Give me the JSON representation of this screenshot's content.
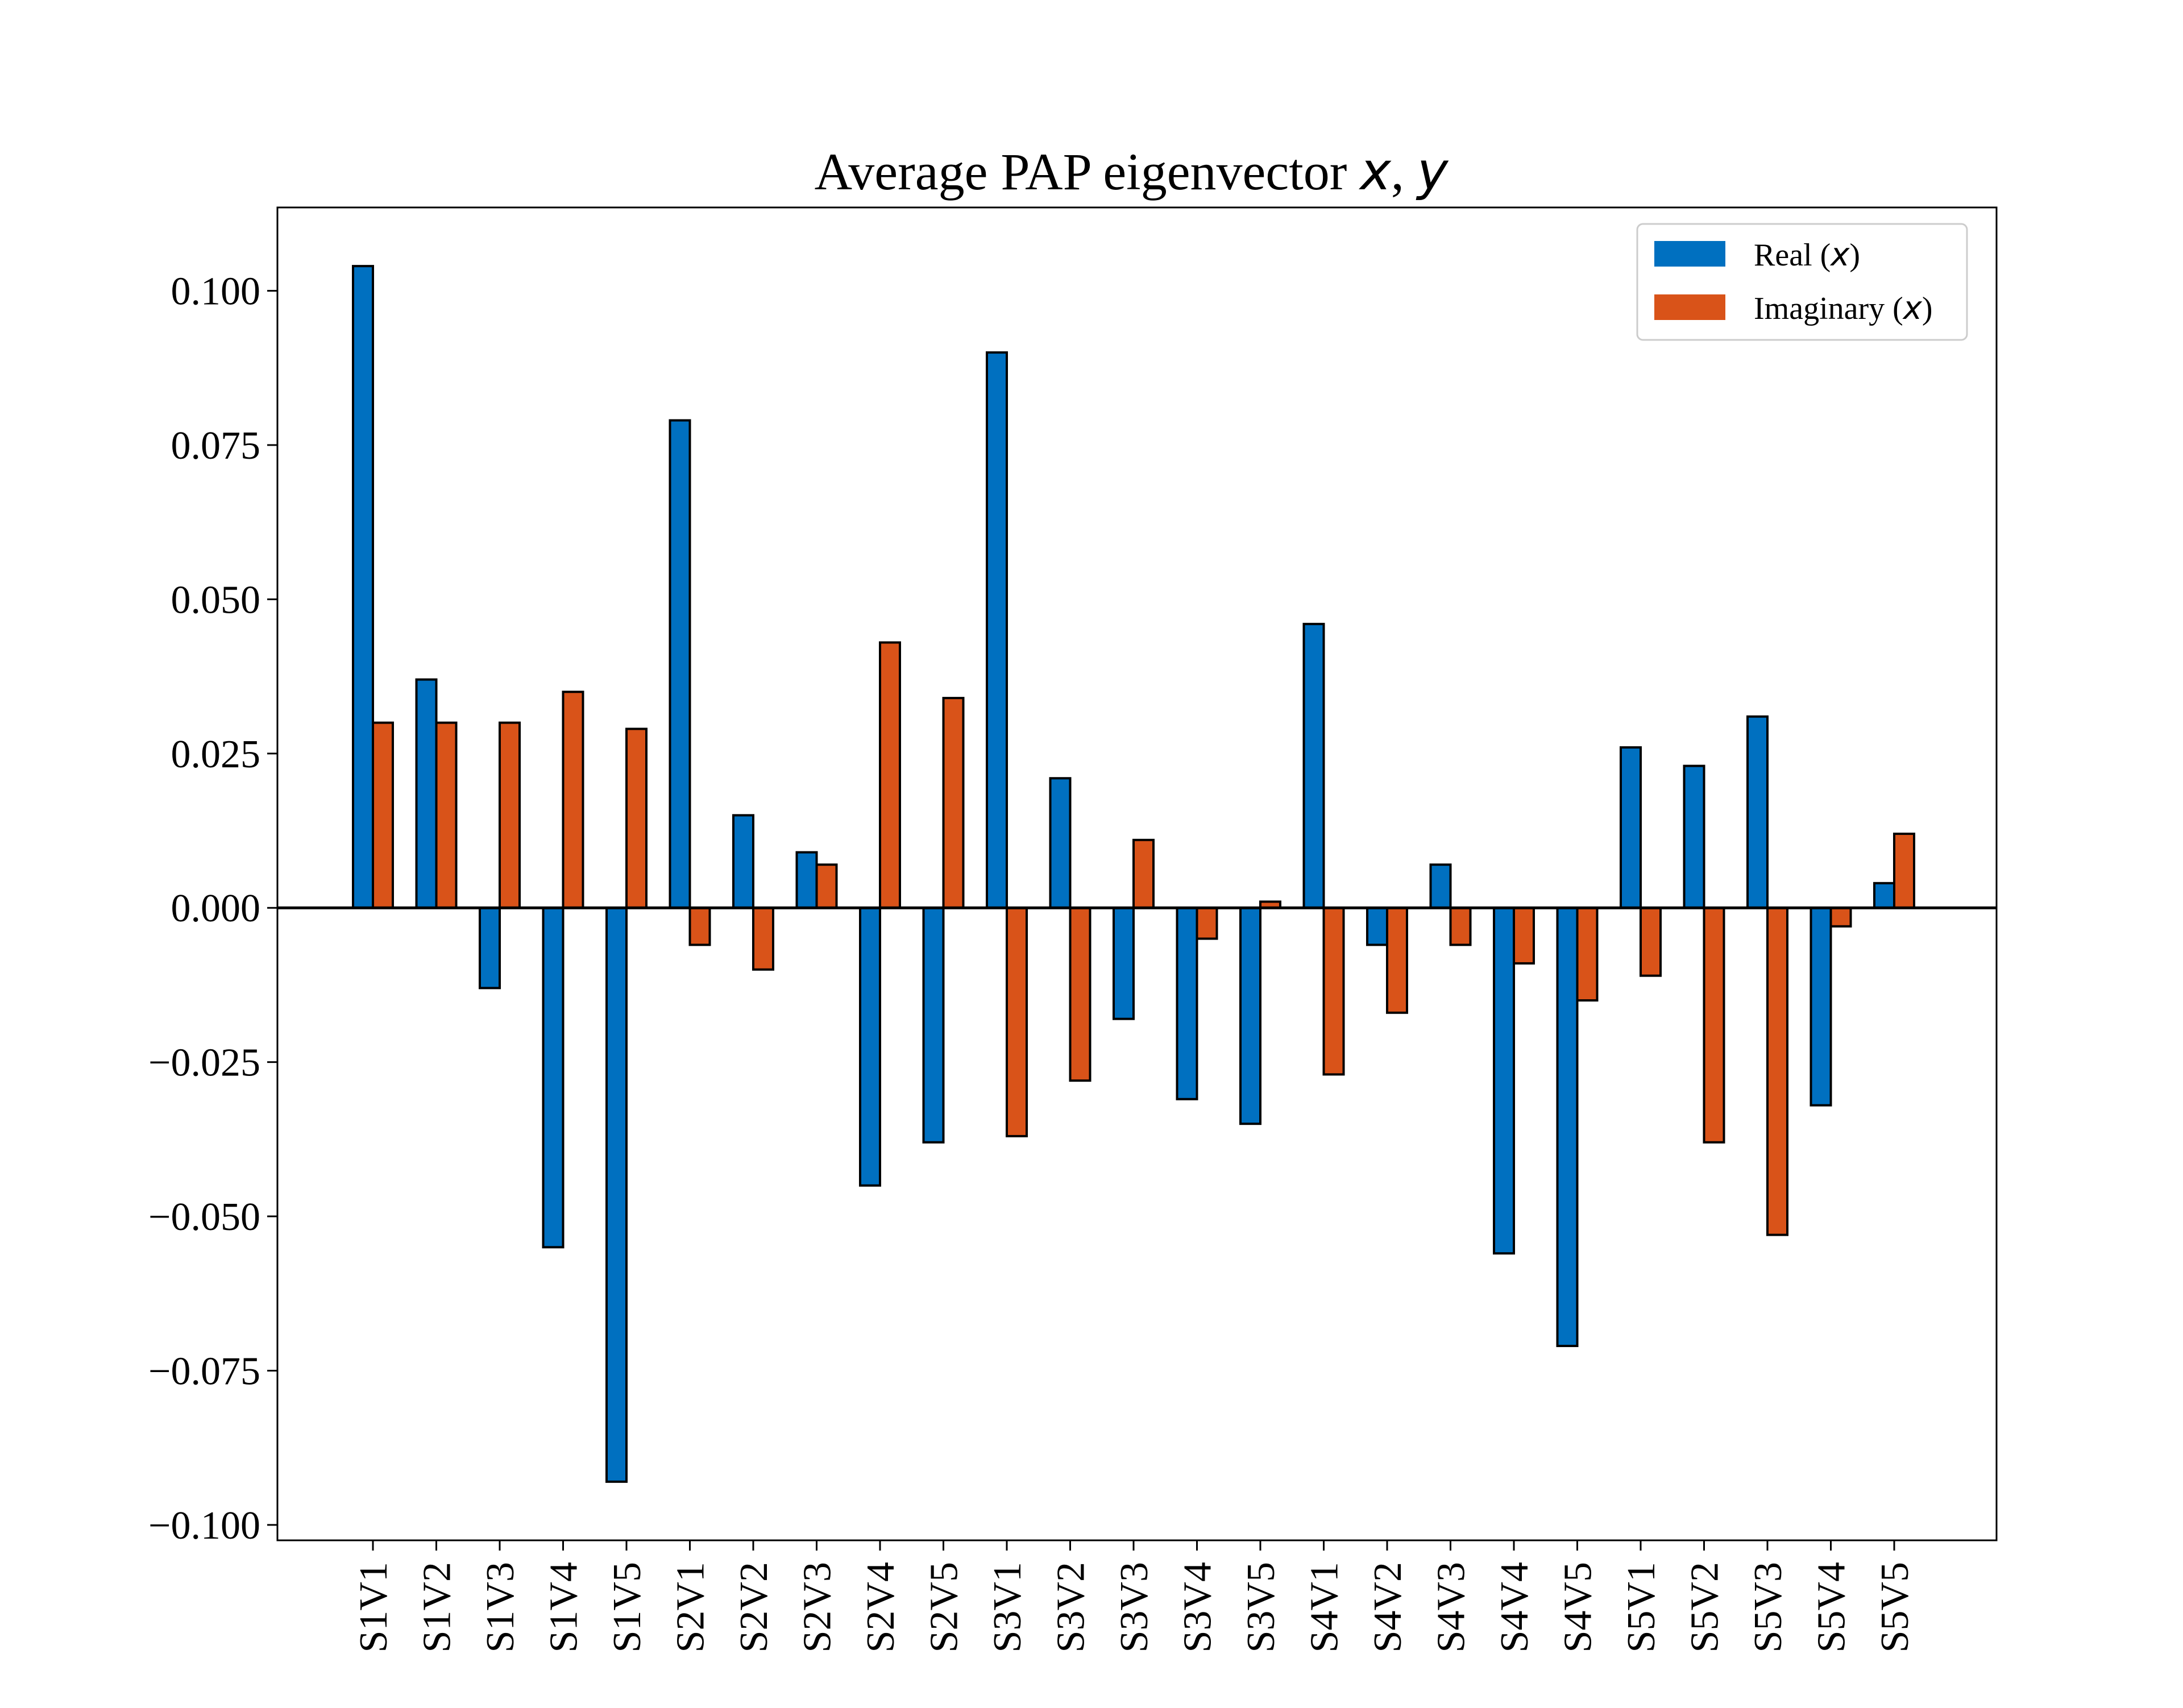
{
  "chart_data": {
    "type": "bar",
    "title": "Average PAP eigenvector x, y",
    "title_parts": {
      "prefix": "Average PAP eigenvector ",
      "var1": "x",
      "sep": ", ",
      "var2": "y"
    },
    "xlabel": "",
    "ylabel": "",
    "categories": [
      "S1V1",
      "S1V2",
      "S1V3",
      "S1V4",
      "S1V5",
      "S2V1",
      "S2V2",
      "S2V3",
      "S2V4",
      "S2V5",
      "S3V1",
      "S3V2",
      "S3V3",
      "S3V4",
      "S3V5",
      "S4V1",
      "S4V2",
      "S4V3",
      "S4V4",
      "S4V5",
      "S5V1",
      "S5V2",
      "S5V3",
      "S5V4",
      "S5V5"
    ],
    "series": [
      {
        "name": "Real (x)",
        "label_parts": {
          "prefix": "Real (",
          "var": "x",
          "suffix": ")"
        },
        "color": "#0070C0",
        "values": [
          0.104,
          0.037,
          -0.013,
          -0.055,
          -0.093,
          0.079,
          0.015,
          0.009,
          -0.045,
          -0.038,
          0.09,
          0.021,
          -0.018,
          -0.031,
          -0.035,
          0.046,
          -0.006,
          0.007,
          -0.056,
          -0.071,
          0.026,
          0.023,
          0.031,
          -0.032,
          0.004
        ]
      },
      {
        "name": "Imaginary (x)",
        "label_parts": {
          "prefix": "Imaginary (",
          "var": "x",
          "suffix": ")"
        },
        "color": "#D95319",
        "values": [
          0.03,
          0.03,
          0.03,
          0.035,
          0.029,
          -0.006,
          -0.01,
          0.007,
          0.043,
          0.034,
          -0.037,
          -0.028,
          0.011,
          -0.005,
          0.001,
          -0.027,
          -0.017,
          -0.006,
          -0.009,
          -0.015,
          -0.011,
          -0.038,
          -0.053,
          -0.003,
          0.012
        ]
      }
    ],
    "ylim": [
      -0.1025,
      0.1135
    ],
    "yticks": [
      0.1,
      0.075,
      0.05,
      0.025,
      0.0,
      -0.025,
      -0.05,
      -0.075,
      -0.1
    ],
    "ytick_labels": [
      "0.100",
      "0.075",
      "0.050",
      "0.025",
      "0.000",
      "−0.025",
      "−0.050",
      "−0.075",
      "−0.100"
    ],
    "grid": false,
    "legend_position": "top-right",
    "zero_line": true
  }
}
